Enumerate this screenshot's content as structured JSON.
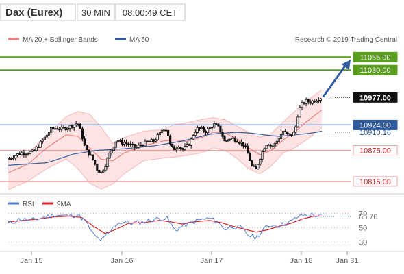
{
  "header": {
    "instrument": "Dax (Eurex)",
    "timeframe": "30 MIN",
    "time": "08:00:49 CET"
  },
  "legend": {
    "bollinger": "MA 20 + Bollinger Bands",
    "ma50": "MA 50",
    "copyright": "Research © 2019 Trading Central",
    "rsi": "RSI",
    "rsi_ma": "9MA"
  },
  "colors": {
    "price": "#111111",
    "bollinger": "#f08080",
    "bollinger_fill": "#fde3e3",
    "ma50": "#2f5a9e",
    "support": "#f0a0a0",
    "resistance": "#5a9e1e",
    "projection": "#2f5a9e",
    "rsi": "#4d7ad8",
    "rsi_ma": "#e02020"
  },
  "chart_data": {
    "type": "candlestick",
    "title": "Dax (Eurex)",
    "x_ticks": [
      "Jan 15",
      "Jan 16",
      "Jan 17",
      "Jan 18",
      "Jan 31"
    ],
    "y_range": [
      10795,
      11062
    ],
    "levels": [
      {
        "value": 11055,
        "label": "11055.00",
        "kind": "resistance"
      },
      {
        "value": 11030,
        "label": "11030.00",
        "kind": "resistance"
      },
      {
        "value": 10977,
        "label": "10977.00",
        "kind": "last"
      },
      {
        "value": 10924,
        "label": "10924.00",
        "kind": "pivot"
      },
      {
        "value": 10910.16,
        "label": "10910.16",
        "kind": "ma50"
      },
      {
        "value": 10875,
        "label": "10875.00",
        "kind": "support"
      },
      {
        "value": 10815,
        "label": "10815.00",
        "kind": "support"
      }
    ],
    "projection": {
      "from": 10977,
      "to": 11055
    },
    "price_path": [
      [
        0,
        10858
      ],
      [
        4,
        10866
      ],
      [
        7,
        10870
      ],
      [
        10,
        10871
      ],
      [
        13,
        10872
      ],
      [
        16,
        10886
      ],
      [
        19,
        10900
      ],
      [
        22,
        10915
      ],
      [
        25,
        10918
      ],
      [
        28,
        10916
      ],
      [
        31,
        10920
      ],
      [
        34,
        10924
      ],
      [
        36,
        10928
      ],
      [
        38,
        10905
      ],
      [
        40,
        10875
      ],
      [
        42,
        10868
      ],
      [
        44,
        10855
      ],
      [
        46,
        10838
      ],
      [
        48,
        10832
      ],
      [
        50,
        10845
      ],
      [
        52,
        10865
      ],
      [
        54,
        10880
      ],
      [
        56,
        10896
      ],
      [
        58,
        10890
      ],
      [
        60,
        10890
      ],
      [
        63,
        10885
      ],
      [
        66,
        10880
      ],
      [
        69,
        10886
      ],
      [
        72,
        10891
      ],
      [
        75,
        10893
      ],
      [
        78,
        10905
      ],
      [
        80,
        10918
      ],
      [
        82,
        10915
      ],
      [
        84,
        10880
      ],
      [
        86,
        10878
      ],
      [
        88,
        10885
      ],
      [
        90,
        10876
      ],
      [
        92,
        10882
      ],
      [
        94,
        10890
      ],
      [
        96,
        10910
      ],
      [
        98,
        10917
      ],
      [
        100,
        10915
      ],
      [
        102,
        10912
      ],
      [
        104,
        10917
      ],
      [
        106,
        10925
      ],
      [
        108,
        10922
      ],
      [
        110,
        10910
      ],
      [
        112,
        10890
      ],
      [
        114,
        10898
      ],
      [
        116,
        10898
      ],
      [
        118,
        10895
      ],
      [
        120,
        10890
      ],
      [
        122,
        10885
      ],
      [
        124,
        10865
      ],
      [
        126,
        10842
      ],
      [
        128,
        10838
      ],
      [
        130,
        10860
      ],
      [
        132,
        10880
      ],
      [
        134,
        10891
      ],
      [
        136,
        10882
      ],
      [
        138,
        10888
      ],
      [
        140,
        10900
      ],
      [
        142,
        10912
      ],
      [
        144,
        10906
      ],
      [
        146,
        10904
      ],
      [
        148,
        10910
      ],
      [
        150,
        10952
      ],
      [
        152,
        10965
      ],
      [
        154,
        10970
      ],
      [
        156,
        10968
      ],
      [
        158,
        10971
      ],
      [
        160,
        10975
      ],
      [
        162,
        10977
      ]
    ],
    "ma20": [
      [
        0,
        10832
      ],
      [
        10,
        10848
      ],
      [
        20,
        10880
      ],
      [
        30,
        10905
      ],
      [
        36,
        10902
      ],
      [
        42,
        10880
      ],
      [
        48,
        10858
      ],
      [
        54,
        10855
      ],
      [
        60,
        10870
      ],
      [
        70,
        10884
      ],
      [
        80,
        10893
      ],
      [
        86,
        10895
      ],
      [
        92,
        10892
      ],
      [
        100,
        10900
      ],
      [
        106,
        10910
      ],
      [
        112,
        10908
      ],
      [
        118,
        10898
      ],
      [
        124,
        10880
      ],
      [
        130,
        10866
      ],
      [
        136,
        10875
      ],
      [
        142,
        10895
      ],
      [
        148,
        10910
      ],
      [
        154,
        10930
      ],
      [
        162,
        10953
      ]
    ],
    "bb_upper": [
      [
        0,
        10855
      ],
      [
        10,
        10868
      ],
      [
        20,
        10905
      ],
      [
        30,
        10940
      ],
      [
        36,
        10950
      ],
      [
        42,
        10945
      ],
      [
        48,
        10920
      ],
      [
        54,
        10888
      ],
      [
        60,
        10900
      ],
      [
        70,
        10912
      ],
      [
        80,
        10915
      ],
      [
        86,
        10925
      ],
      [
        92,
        10928
      ],
      [
        100,
        10935
      ],
      [
        106,
        10938
      ],
      [
        112,
        10934
      ],
      [
        118,
        10922
      ],
      [
        124,
        10910
      ],
      [
        130,
        10900
      ],
      [
        136,
        10908
      ],
      [
        142,
        10930
      ],
      [
        148,
        10950
      ],
      [
        154,
        10970
      ],
      [
        162,
        10992
      ]
    ],
    "bb_lower": [
      [
        0,
        10799
      ],
      [
        10,
        10815
      ],
      [
        20,
        10840
      ],
      [
        30,
        10858
      ],
      [
        36,
        10840
      ],
      [
        42,
        10812
      ],
      [
        48,
        10800
      ],
      [
        54,
        10810
      ],
      [
        60,
        10830
      ],
      [
        70,
        10855
      ],
      [
        80,
        10860
      ],
      [
        86,
        10862
      ],
      [
        92,
        10865
      ],
      [
        100,
        10870
      ],
      [
        106,
        10880
      ],
      [
        112,
        10875
      ],
      [
        118,
        10860
      ],
      [
        124,
        10840
      ],
      [
        130,
        10830
      ],
      [
        136,
        10845
      ],
      [
        142,
        10870
      ],
      [
        148,
        10880
      ],
      [
        154,
        10895
      ],
      [
        162,
        10918
      ]
    ],
    "ma50": [
      [
        0,
        10846
      ],
      [
        20,
        10851
      ],
      [
        34,
        10868
      ],
      [
        46,
        10875
      ],
      [
        60,
        10878
      ],
      [
        76,
        10884
      ],
      [
        90,
        10893
      ],
      [
        104,
        10906
      ],
      [
        118,
        10910
      ],
      [
        126,
        10908
      ],
      [
        134,
        10904
      ],
      [
        140,
        10902
      ],
      [
        148,
        10905
      ],
      [
        156,
        10908
      ],
      [
        162,
        10912
      ]
    ],
    "rsi": {
      "current": 65.7,
      "current_label": "65.70",
      "y_range": [
        20,
        75
      ],
      "ticks": [
        {
          "value": 70,
          "label": "70"
        },
        {
          "value": 50,
          "label": "50"
        },
        {
          "value": 30,
          "label": "30"
        }
      ],
      "values": [
        [
          0,
          55
        ],
        [
          6,
          62
        ],
        [
          12,
          60
        ],
        [
          18,
          64
        ],
        [
          24,
          68
        ],
        [
          30,
          66
        ],
        [
          36,
          68
        ],
        [
          40,
          58
        ],
        [
          44,
          40
        ],
        [
          48,
          32
        ],
        [
          52,
          42
        ],
        [
          56,
          56
        ],
        [
          60,
          58
        ],
        [
          64,
          56
        ],
        [
          70,
          58
        ],
        [
          76,
          62
        ],
        [
          82,
          63
        ],
        [
          86,
          46
        ],
        [
          90,
          52
        ],
        [
          94,
          56
        ],
        [
          98,
          60
        ],
        [
          104,
          63
        ],
        [
          108,
          58
        ],
        [
          112,
          48
        ],
        [
          116,
          52
        ],
        [
          120,
          50
        ],
        [
          124,
          40
        ],
        [
          128,
          36
        ],
        [
          132,
          48
        ],
        [
          136,
          54
        ],
        [
          140,
          53
        ],
        [
          146,
          58
        ],
        [
          150,
          66
        ],
        [
          156,
          68
        ],
        [
          162,
          66
        ]
      ],
      "ma": [
        [
          0,
          58
        ],
        [
          8,
          60
        ],
        [
          16,
          62
        ],
        [
          24,
          65
        ],
        [
          32,
          66
        ],
        [
          38,
          64
        ],
        [
          44,
          52
        ],
        [
          50,
          42
        ],
        [
          56,
          48
        ],
        [
          62,
          56
        ],
        [
          70,
          57
        ],
        [
          78,
          60
        ],
        [
          84,
          58
        ],
        [
          90,
          55
        ],
        [
          96,
          58
        ],
        [
          104,
          60
        ],
        [
          110,
          57
        ],
        [
          116,
          52
        ],
        [
          122,
          48
        ],
        [
          128,
          44
        ],
        [
          134,
          47
        ],
        [
          140,
          52
        ],
        [
          146,
          56
        ],
        [
          152,
          62
        ],
        [
          158,
          66
        ],
        [
          162,
          66
        ]
      ]
    }
  }
}
